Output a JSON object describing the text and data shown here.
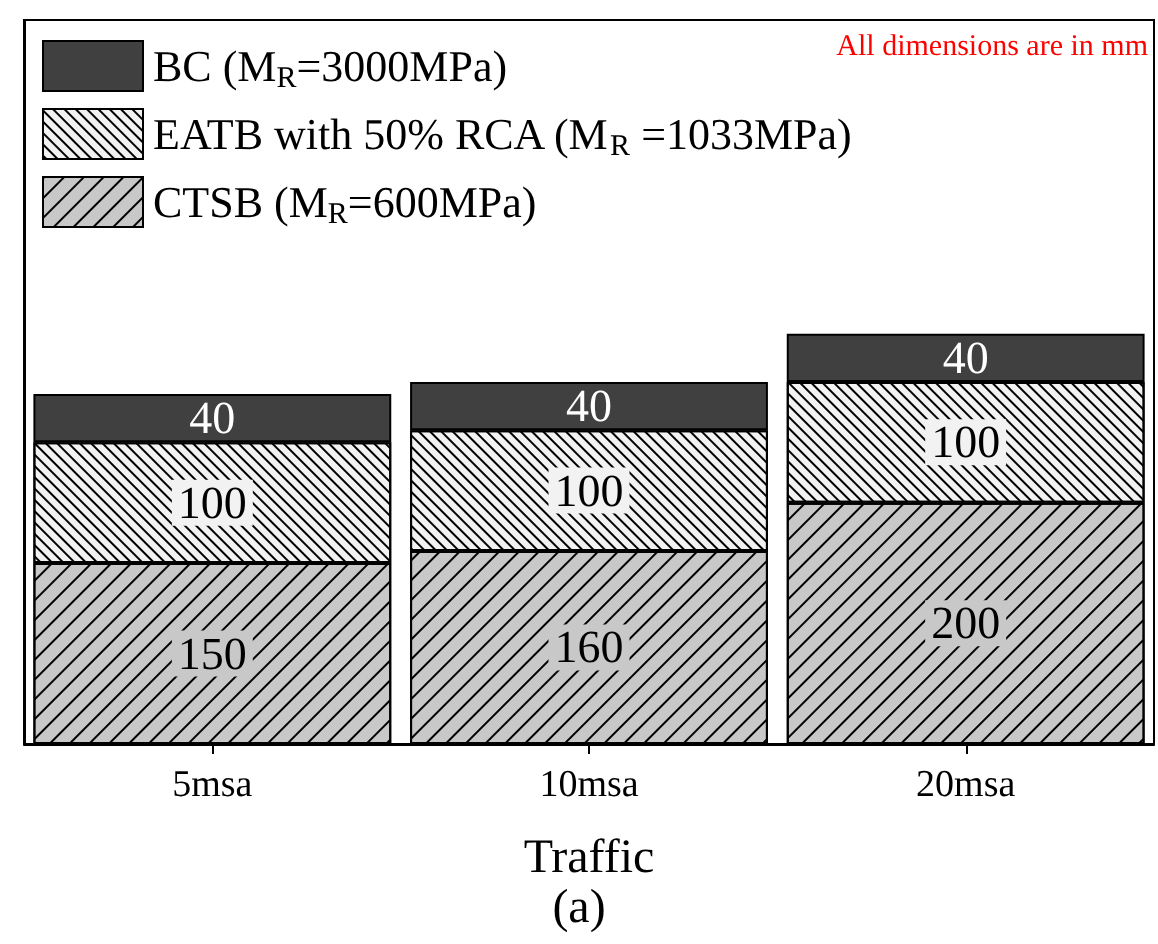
{
  "chart_data": {
    "type": "bar",
    "stacked": true,
    "categories": [
      "5msa",
      "10msa",
      "20msa"
    ],
    "series": [
      {
        "name": "CTSB (M$_{R}$=600MPa)",
        "color": "#c8c8c8",
        "values": [
          150,
          160,
          200
        ]
      },
      {
        "name": "EATB with 50% RCA (M$_{R}$ =1033MPa)",
        "color": "#f2f2f2",
        "values": [
          100,
          100,
          100
        ]
      },
      {
        "name": "BC (M$_{R}$=3000MPa)",
        "color": "#404040",
        "values": [
          40,
          40,
          40
        ]
      }
    ],
    "xlabel": "Traffic",
    "annotations": [
      "All dimensions are in mm",
      "(a)"
    ],
    "ylim": [
      0,
      600
    ],
    "tick_labels": "x",
    "data_labels": true,
    "legend": "top left"
  }
}
